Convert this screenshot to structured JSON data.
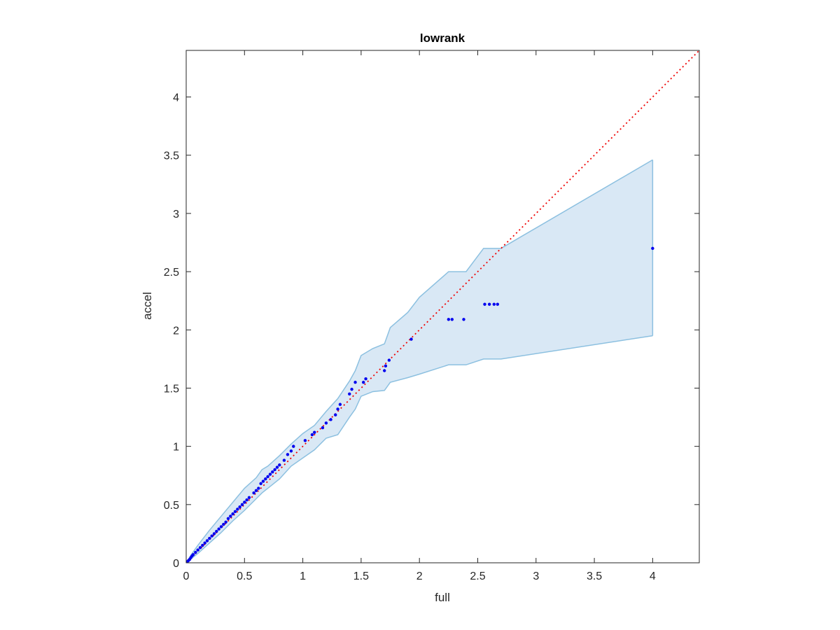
{
  "chart_data": {
    "type": "scatter",
    "title": "lowrank",
    "xlabel": "full",
    "ylabel": "accel",
    "xlim": [
      0,
      4.4
    ],
    "ylim": [
      0,
      4.4
    ],
    "xticks": [
      0,
      0.5,
      1,
      1.5,
      2,
      2.5,
      3,
      3.5,
      4
    ],
    "xtick_labels": [
      "0",
      "0.5",
      "1",
      "1.5",
      "2",
      "2.5",
      "3",
      "3.5",
      "4"
    ],
    "yticks": [
      0,
      0.5,
      1,
      1.5,
      2,
      2.5,
      3,
      3.5,
      4
    ],
    "ytick_labels": [
      "0",
      "0.5",
      "1",
      "1.5",
      "2",
      "2.5",
      "3",
      "3.5",
      "4"
    ],
    "grid": false,
    "colors": {
      "points": "#0000ee",
      "reference_line": "#ee0000",
      "band_fill": "#d9e8f5",
      "band_edge": "#8cc0e0",
      "axes": "#262626"
    },
    "points": {
      "x": [
        0.01,
        0.02,
        0.03,
        0.04,
        0.05,
        0.06,
        0.08,
        0.1,
        0.12,
        0.14,
        0.16,
        0.18,
        0.2,
        0.22,
        0.24,
        0.26,
        0.28,
        0.3,
        0.32,
        0.34,
        0.36,
        0.38,
        0.4,
        0.42,
        0.44,
        0.46,
        0.48,
        0.5,
        0.52,
        0.54,
        0.58,
        0.6,
        0.62,
        0.64,
        0.66,
        0.68,
        0.7,
        0.72,
        0.74,
        0.76,
        0.78,
        0.8,
        0.84,
        0.87,
        0.9,
        0.92,
        1.02,
        1.08,
        1.1,
        1.17,
        1.2,
        1.24,
        1.28,
        1.3,
        1.32,
        1.4,
        1.42,
        1.45,
        1.52,
        1.54,
        1.7,
        1.71,
        1.74,
        1.93,
        2.25,
        2.28,
        2.38,
        2.56,
        2.6,
        2.64,
        2.67,
        4.0
      ],
      "y": [
        0.01,
        0.02,
        0.03,
        0.045,
        0.06,
        0.07,
        0.09,
        0.11,
        0.13,
        0.15,
        0.17,
        0.19,
        0.21,
        0.23,
        0.25,
        0.27,
        0.29,
        0.31,
        0.33,
        0.35,
        0.38,
        0.4,
        0.42,
        0.44,
        0.46,
        0.48,
        0.5,
        0.52,
        0.54,
        0.56,
        0.6,
        0.62,
        0.64,
        0.68,
        0.7,
        0.72,
        0.74,
        0.76,
        0.78,
        0.8,
        0.82,
        0.84,
        0.88,
        0.93,
        0.96,
        1.0,
        1.05,
        1.1,
        1.12,
        1.16,
        1.2,
        1.23,
        1.27,
        1.32,
        1.36,
        1.45,
        1.49,
        1.55,
        1.55,
        1.58,
        1.65,
        1.69,
        1.74,
        1.92,
        2.09,
        2.09,
        2.09,
        2.22,
        2.22,
        2.22,
        2.22,
        2.7
      ]
    },
    "reference_line": {
      "x": [
        0,
        4.4
      ],
      "y": [
        0,
        4.4
      ]
    },
    "confidence_band": {
      "x": [
        0,
        0.05,
        0.1,
        0.2,
        0.3,
        0.4,
        0.5,
        0.6,
        0.65,
        0.7,
        0.8,
        0.9,
        1.0,
        1.1,
        1.2,
        1.3,
        1.4,
        1.45,
        1.5,
        1.6,
        1.7,
        1.75,
        1.9,
        2.0,
        2.25,
        2.4,
        2.55,
        2.7,
        4.0
      ],
      "upper": [
        0,
        0.08,
        0.15,
        0.28,
        0.4,
        0.52,
        0.64,
        0.73,
        0.8,
        0.83,
        0.92,
        1.02,
        1.11,
        1.18,
        1.3,
        1.41,
        1.56,
        1.65,
        1.78,
        1.84,
        1.88,
        2.02,
        2.15,
        2.28,
        2.5,
        2.5,
        2.7,
        2.7,
        3.46
      ],
      "lower": [
        0,
        0.04,
        0.08,
        0.17,
        0.26,
        0.36,
        0.45,
        0.55,
        0.6,
        0.64,
        0.72,
        0.83,
        0.9,
        0.97,
        1.07,
        1.1,
        1.25,
        1.32,
        1.43,
        1.47,
        1.48,
        1.55,
        1.59,
        1.62,
        1.7,
        1.7,
        1.75,
        1.75,
        1.95
      ]
    }
  }
}
